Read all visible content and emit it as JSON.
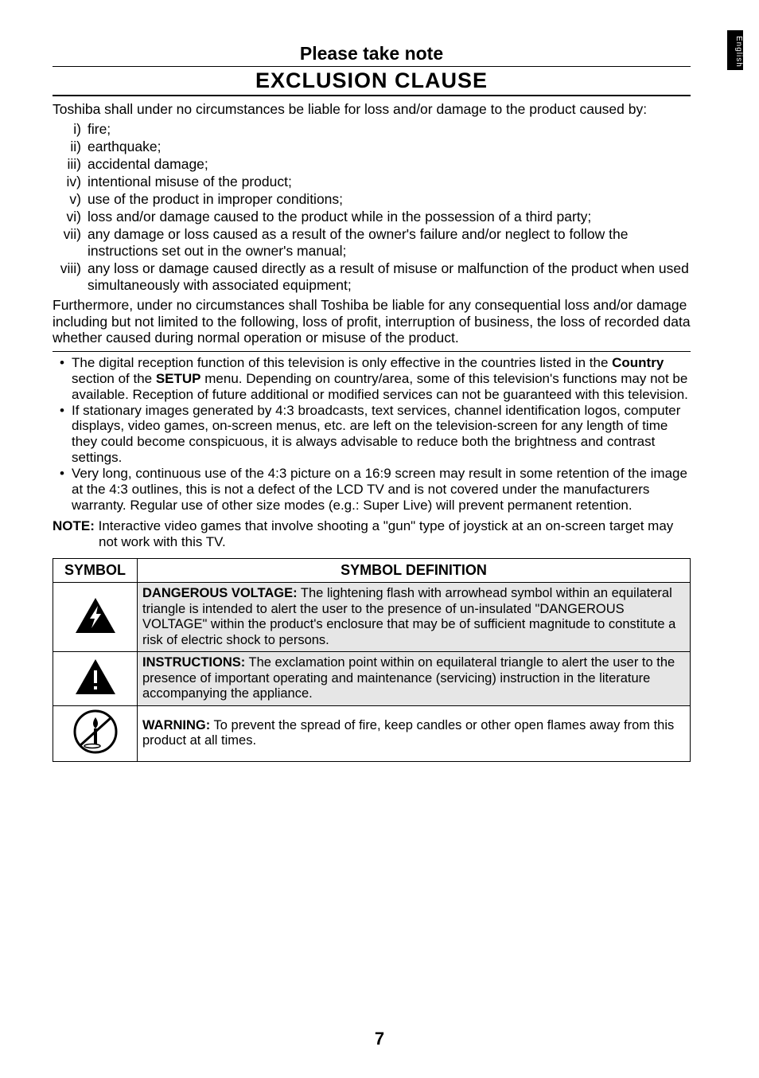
{
  "side_tab": "English",
  "eyebrow": "Please take note",
  "title": "EXCLUSION CLAUSE",
  "intro": "Toshiba shall under no circumstances be liable for loss and/or damage to the product caused by:",
  "roman_items": [
    {
      "num": "i)",
      "text": "fire;"
    },
    {
      "num": "ii)",
      "text": "earthquake;"
    },
    {
      "num": "iii)",
      "text": "accidental damage;"
    },
    {
      "num": "iv)",
      "text": "intentional misuse of the product;"
    },
    {
      "num": "v)",
      "text": "use of the product in improper conditions;"
    },
    {
      "num": "vi)",
      "text": "loss and/or damage caused to the product while in the possession of a third party;"
    },
    {
      "num": "vii)",
      "text": "any damage or loss caused as a result of the owner's failure and/or neglect to follow the instructions set out in the owner's manual;"
    },
    {
      "num": "viii)",
      "text": "any loss or damage caused directly as a result of misuse or malfunction of the product when used simultaneously with associated equipment;"
    }
  ],
  "furthermore": "Furthermore, under no circumstances shall Toshiba be liable for any consequential loss and/or damage including but not limited to the following, loss of profit, interruption of business, the loss of recorded data whether caused during normal operation or misuse of the product.",
  "bullet_items": [
    {
      "pre": "The digital reception function of this television is only effective in the countries listed in the ",
      "bold1": "Country",
      "mid": " section of the ",
      "bold2": "SETUP",
      "post": " menu. Depending on country/area, some of this television's functions may not be available. Reception of future additional or modified services can not be guaranteed with this television."
    },
    {
      "pre": "If stationary images generated by 4:3 broadcasts, text services, channel identification logos, computer displays, video games, on-screen menus, etc. are left on the television-screen for any length of time they could become conspicuous, it is always advisable to reduce both the brightness and contrast settings.",
      "bold1": "",
      "mid": "",
      "bold2": "",
      "post": ""
    },
    {
      "pre": "Very long, continuous use of the 4:3 picture on a 16:9 screen may result in some retention of the image at the 4:3 outlines, this is not a defect of the LCD TV and is not covered under the manufacturers warranty. Regular use of other size modes (e.g.: Super Live) will prevent permanent retention.",
      "bold1": "",
      "mid": "",
      "bold2": "",
      "post": ""
    }
  ],
  "note_label": "NOTE:",
  "note_text": " Interactive video games that involve shooting a \"gun\" type of joystick at an on-screen target may not work with this TV.",
  "table": {
    "headers": {
      "col1": "SYMBOL",
      "col2": "SYMBOL DEFINITION"
    },
    "rows": [
      {
        "bold": "DANGEROUS VOLTAGE:",
        "text": " The lightening flash with arrowhead symbol within an equilateral triangle is intended to alert the user to the presence of un-insulated \"DANGEROUS VOLTAGE\" within the product's enclosure that may be of sufficient magnitude to constitute a risk of electric shock to persons."
      },
      {
        "bold": "INSTRUCTIONS:",
        "text": " The exclamation point within on equilateral triangle to alert the user to the presence of important operating and maintenance (servicing) instruction in the literature accompanying the appliance."
      },
      {
        "bold": "WARNING:",
        "text": " To prevent the spread of fire, keep candles or other open flames away from this product at all times."
      }
    ]
  },
  "page_number": "7"
}
